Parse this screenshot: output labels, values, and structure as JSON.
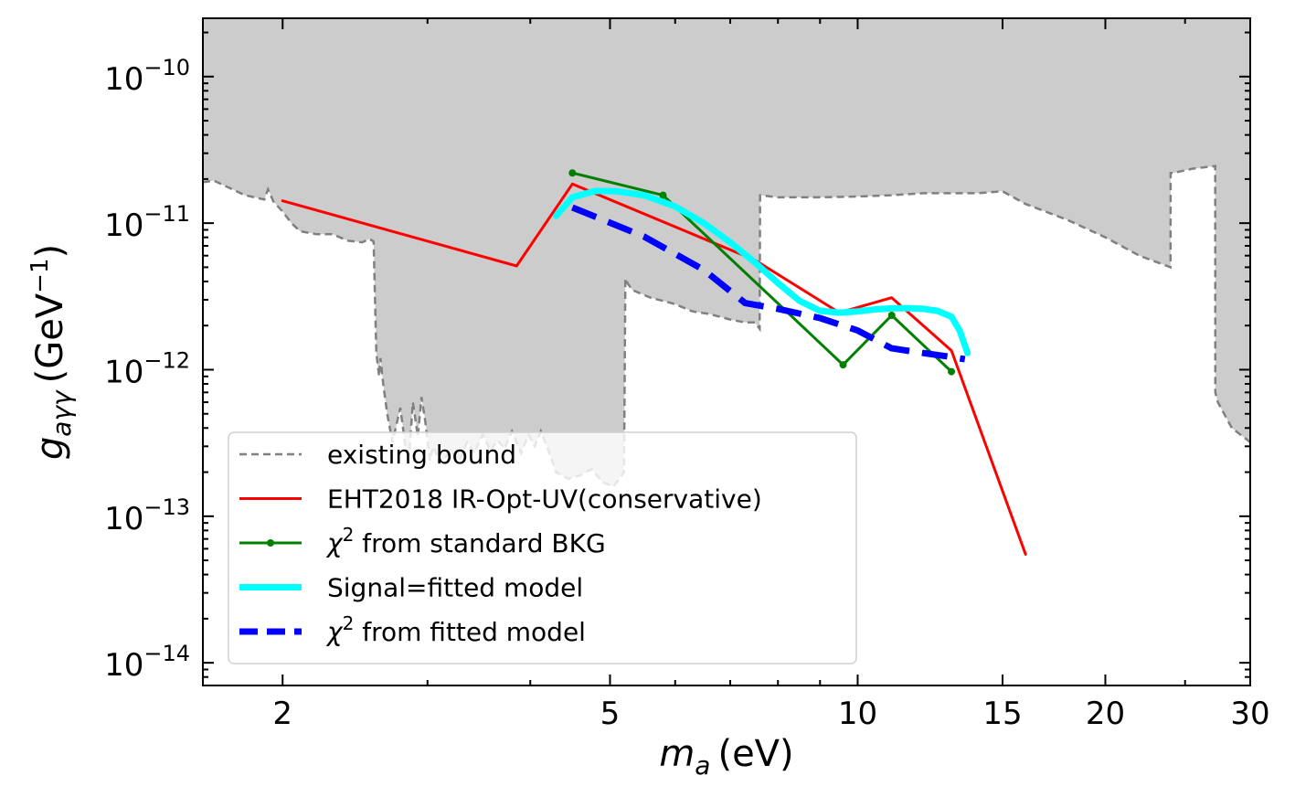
{
  "chart_data": {
    "type": "line",
    "xscale": "log",
    "yscale": "log",
    "xlim": [
      1.6,
      30
    ],
    "ylim": [
      7e-15,
      2.5e-10
    ],
    "xlabel": {
      "main": "m",
      "sub": "a",
      "unit": "(eV)"
    },
    "ylabel": {
      "main": "g",
      "sub": "aγγ",
      "unit": "(GeV",
      "unit_sup": "−1",
      "unit_end": ")"
    },
    "x_ticks": [
      {
        "value": 2,
        "label": "2"
      },
      {
        "value": 5,
        "label": "5"
      },
      {
        "value": 10,
        "label": "10"
      },
      {
        "value": 15,
        "label": "15"
      },
      {
        "value": 20,
        "label": "20"
      },
      {
        "value": 30,
        "label": "30"
      }
    ],
    "y_ticks": [
      {
        "value": 1e-14,
        "base": "10",
        "exp": "−14"
      },
      {
        "value": 1e-13,
        "base": "10",
        "exp": "−13"
      },
      {
        "value": 1e-12,
        "base": "10",
        "exp": "−12"
      },
      {
        "value": 1e-11,
        "base": "10",
        "exp": "−11"
      },
      {
        "value": 1e-10,
        "base": "10",
        "exp": "−10"
      }
    ],
    "legend": {
      "placement": "lower-left",
      "entries": [
        {
          "key": "existing",
          "label": "existing bound"
        },
        {
          "key": "eht",
          "label": "EHT2018 IR-Opt-UV(conservative)"
        },
        {
          "key": "chi_std",
          "label_sym": "χ",
          "label_sup": "2",
          "label_rest": " from standard BKG"
        },
        {
          "key": "signal",
          "label": "Signal=fitted model"
        },
        {
          "key": "chi_fit",
          "label_sym": "χ",
          "label_sup": "2",
          "label_rest": " from fitted model"
        }
      ]
    },
    "colors": {
      "existing": "#808080",
      "existing_fill": "#cccccc",
      "eht": "#ff0000",
      "chi_std": "#008000",
      "signal": "#00ffff",
      "chi_fit": "#0000ff"
    },
    "series": [
      {
        "key": "existing",
        "x": [
          1.6,
          1.65,
          1.72,
          1.8,
          1.85,
          1.9,
          1.92,
          1.95,
          2.0,
          2.05,
          2.1,
          2.2,
          2.3,
          2.4,
          2.5,
          2.55,
          2.58,
          2.6,
          2.62,
          2.63,
          2.65,
          2.68,
          2.72,
          2.78,
          2.82,
          2.85,
          2.88,
          2.92,
          2.95,
          2.98,
          3.02,
          3.05,
          3.1,
          3.15,
          3.2,
          3.28,
          3.35,
          3.42,
          3.5,
          3.58,
          3.65,
          3.72,
          3.8,
          3.9,
          3.98,
          4.05,
          4.12,
          4.2,
          4.3,
          4.45,
          4.6,
          4.75,
          4.9,
          5.05,
          5.2,
          5.22,
          5.25,
          5.32,
          5.45,
          5.6,
          5.8,
          6.0,
          6.3,
          6.6,
          7.0,
          7.3,
          7.5,
          7.6,
          7.61,
          7.63,
          8.0,
          9.0,
          10.0,
          11.0,
          12.0,
          14.0,
          15.0,
          16.0,
          18.0,
          20.0,
          22.0,
          24.0,
          24.01,
          24.2,
          25.5,
          27.2,
          27.21,
          27.4,
          28.5,
          30.0
        ],
        "y": [
          1.9e-11,
          1.95e-11,
          1.75e-11,
          1.55e-11,
          1.5e-11,
          1.45e-11,
          1.7e-11,
          1.4e-11,
          1.2e-11,
          1e-11,
          8.8e-12,
          8.4e-12,
          8.4e-12,
          7.6e-12,
          7.4e-12,
          7.8e-12,
          7.5e-12,
          1.3e-12,
          9e-13,
          1.2e-12,
          8e-13,
          5e-13,
          3.2e-13,
          5.5e-13,
          3e-13,
          2.6e-13,
          6e-13,
          3.5e-13,
          6.5e-13,
          4.5e-13,
          2.4e-13,
          3e-13,
          2.3e-13,
          2.5e-13,
          2.8e-13,
          2.4e-13,
          3.2e-13,
          2.7e-13,
          3.6e-13,
          2.8e-13,
          3.3e-13,
          2.9e-13,
          3.8e-13,
          2.7e-13,
          3.6e-13,
          3e-13,
          3.8e-13,
          2.9e-13,
          2e-13,
          1.8e-13,
          1.9e-13,
          2.1e-13,
          1.7e-13,
          1.6e-13,
          2e-13,
          4.2e-12,
          3.9e-12,
          3.5e-12,
          3.3e-12,
          3.1e-12,
          2.95e-12,
          2.8e-12,
          2.5e-12,
          2.4e-12,
          2.2e-12,
          2.1e-12,
          2.1e-12,
          1.9e-12,
          1.55e-11,
          1.55e-11,
          1.5e-11,
          1.5e-11,
          1.52e-11,
          1.55e-11,
          1.6e-11,
          1.6e-11,
          1.65e-11,
          1.35e-11,
          1.05e-11,
          8e-12,
          6e-12,
          5e-12,
          2.2e-11,
          2.2e-11,
          2.35e-11,
          2.45e-11,
          7e-13,
          6e-13,
          4e-13,
          3.2e-13
        ]
      },
      {
        "key": "eht",
        "x": [
          2.0,
          3.85,
          4.5,
          7.5,
          9.5,
          11.0,
          13.0,
          16.0
        ],
        "y": [
          1.42e-11,
          5.1e-12,
          1.85e-11,
          5.6e-12,
          2.45e-12,
          3.1e-12,
          1.35e-12,
          5.5e-14
        ]
      },
      {
        "key": "chi_std",
        "x": [
          4.5,
          5.8,
          9.6,
          11.0,
          13.0
        ],
        "y": [
          2.2e-11,
          1.55e-11,
          1.08e-12,
          2.35e-12,
          9.7e-13
        ]
      },
      {
        "key": "signal",
        "x": [
          4.3,
          4.5,
          4.8,
          5.1,
          5.5,
          6.0,
          6.5,
          7.0,
          7.5,
          8.0,
          8.5,
          9.0,
          9.5,
          10.0,
          10.5,
          11.0,
          11.5,
          12.0,
          12.5,
          13.0,
          13.3,
          13.6
        ],
        "y": [
          1.12e-11,
          1.5e-11,
          1.66e-11,
          1.65e-11,
          1.55e-11,
          1.3e-11,
          1e-11,
          7.4e-12,
          5.4e-12,
          3.9e-12,
          2.95e-12,
          2.52e-12,
          2.45e-12,
          2.5e-12,
          2.58e-12,
          2.62e-12,
          2.63e-12,
          2.6e-12,
          2.52e-12,
          2.3e-12,
          1.85e-12,
          1.3e-12
        ]
      },
      {
        "key": "chi_fit",
        "x": [
          4.5,
          5.5,
          6.5,
          7.3,
          8.0,
          9.0,
          10.0,
          11.0,
          12.0,
          13.0,
          13.5
        ],
        "y": [
          1.28e-11,
          8.1e-12,
          4.8e-12,
          2.85e-12,
          2.6e-12,
          2.25e-12,
          1.85e-12,
          1.4e-12,
          1.3e-12,
          1.22e-12,
          1.18e-12
        ]
      }
    ]
  }
}
